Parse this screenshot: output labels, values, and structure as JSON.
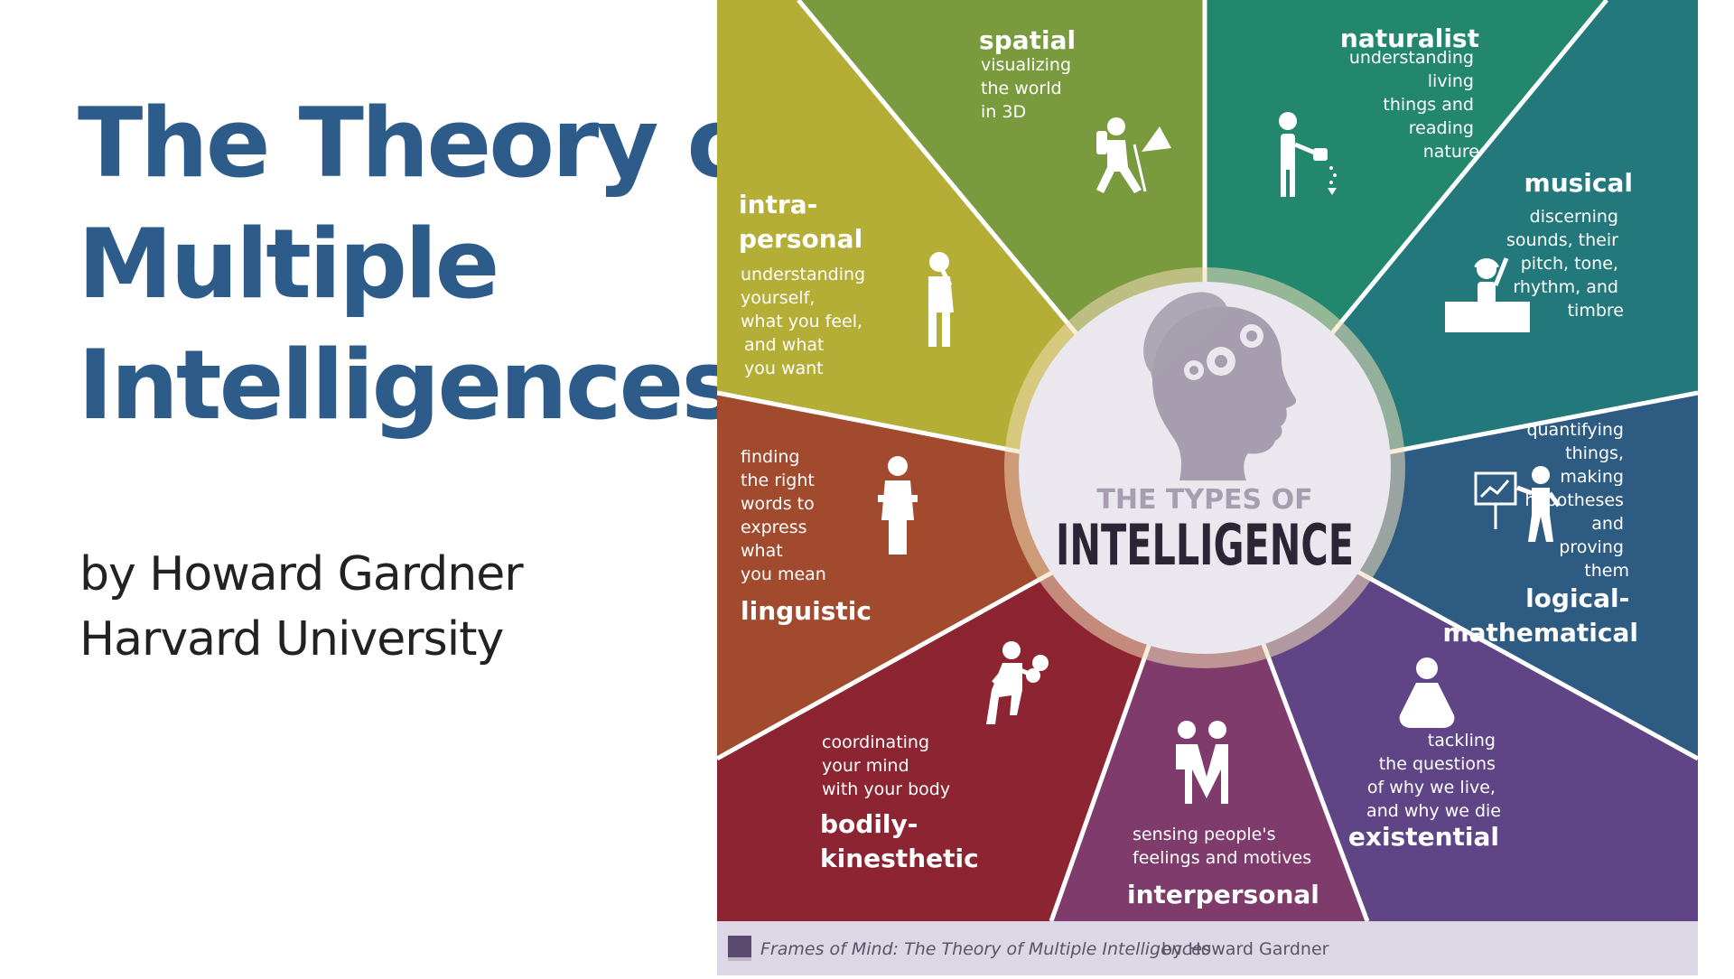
{
  "title": {
    "lines": [
      "The Theory of",
      "Multiple",
      "Intelligences"
    ]
  },
  "byline": {
    "author": "by Howard Gardner",
    "institution": "Harvard University"
  },
  "infographic": {
    "center": {
      "heading_small": "THE TYPES OF",
      "heading_large": "INTELLIGENCE"
    },
    "segments": [
      {
        "name": "spatial",
        "label": [
          "spatial"
        ],
        "desc": [
          "visualizing",
          "the world",
          "in 3D"
        ],
        "color": "#7a9a3e"
      },
      {
        "name": "naturalist",
        "label": [
          "naturalist"
        ],
        "desc": [
          "understanding",
          "living",
          "things and",
          "reading",
          "nature"
        ],
        "color": "#23876e"
      },
      {
        "name": "musical",
        "label": [
          "musical"
        ],
        "desc": [
          "discerning",
          "sounds, their",
          "pitch, tone,",
          "rhythm, and",
          "timbre"
        ],
        "color": "#22787a"
      },
      {
        "name": "logical-mathematical",
        "label": [
          "logical-",
          "mathematical"
        ],
        "desc": [
          "quantifying",
          "things,",
          "making",
          "hypotheses",
          "and",
          "proving",
          "them"
        ],
        "color": "#2d5b82"
      },
      {
        "name": "existential",
        "label": [
          "existential"
        ],
        "desc": [
          "tackling",
          "the questions",
          "of why we live,",
          "and why we die"
        ],
        "color": "#5f4585"
      },
      {
        "name": "interpersonal",
        "label": [
          "interpersonal"
        ],
        "desc": [
          "sensing  people's",
          "feelings and motives"
        ],
        "color": "#7e3b6b"
      },
      {
        "name": "bodily-kinesthetic",
        "label": [
          "bodily-",
          "kinesthetic"
        ],
        "desc": [
          "coordinating",
          "your mind",
          "with your body"
        ],
        "color": "#8c2432"
      },
      {
        "name": "linguistic",
        "label": [
          "linguistic"
        ],
        "desc": [
          "finding",
          "the right",
          "words to",
          "express",
          "what",
          "you mean"
        ],
        "color": "#a24a2e"
      },
      {
        "name": "intra-personal",
        "label": [
          "intra-",
          "personal"
        ],
        "desc": [
          "understanding",
          "yourself,",
          "what you feel,",
          "and what",
          "you want"
        ],
        "color": "#b4ae36"
      }
    ],
    "footer": {
      "book_title": "Frames of Mind: The Theory of Multiple Intelligences",
      "author": "by Howard Gardner"
    },
    "colors": {
      "center_bg": "#eae7ee",
      "ring": "#f2dfb8",
      "head": "#a69eae",
      "heading_dark": "#2c2536",
      "footer_bg": "#ddd6e4",
      "title": "#2d5c8a"
    }
  }
}
